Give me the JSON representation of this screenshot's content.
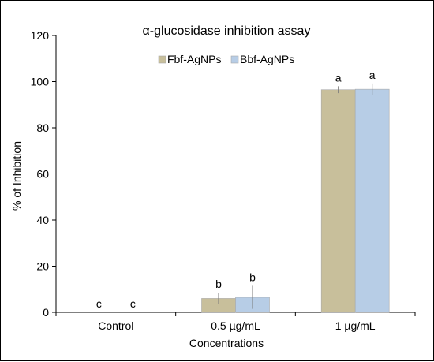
{
  "chart_data": {
    "type": "bar",
    "title": "α-glucosidase inhibition assay",
    "xlabel": "Concentrations",
    "ylabel": "% of Inhibition",
    "categories": [
      "Control",
      "0.5 µg/mL",
      "1 µg/mL"
    ],
    "ylim": [
      0,
      120
    ],
    "yticks": [
      0,
      20,
      40,
      60,
      80,
      100,
      120
    ],
    "grid": false,
    "legend_position": "top",
    "series": [
      {
        "name": "Fbf-AgNPs",
        "color": "#c8bf9b",
        "values": [
          0,
          6,
          96.5
        ],
        "errors": [
          0,
          2.5,
          1.5
        ],
        "labels": [
          "c",
          "b",
          "a"
        ]
      },
      {
        "name": "Bbf-AgNPs",
        "color": "#b7cde6",
        "values": [
          0,
          6.5,
          96.7
        ],
        "errors": [
          0,
          5,
          2.5
        ],
        "labels": [
          "c",
          "b",
          "a"
        ]
      }
    ]
  }
}
